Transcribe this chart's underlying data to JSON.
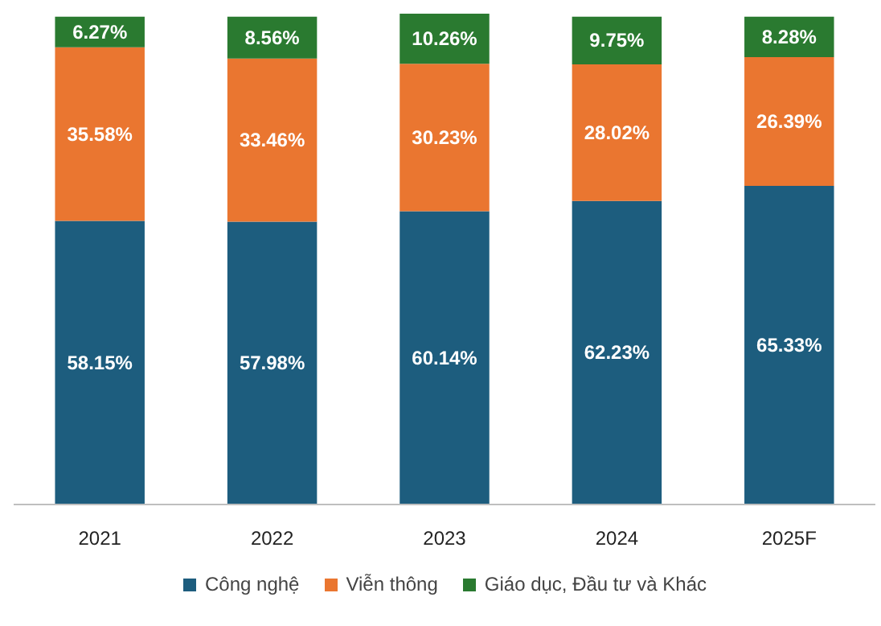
{
  "chart_data": {
    "type": "bar",
    "stacked": true,
    "categories": [
      "2021",
      "2022",
      "2023",
      "2024",
      "2025F"
    ],
    "series": [
      {
        "name": "Công nghệ",
        "color": "#1d5d7e",
        "values": [
          58.15,
          57.98,
          60.14,
          62.23,
          65.33
        ],
        "value_labels": [
          "58.15%",
          "57.98%",
          "60.14%",
          "62.23%",
          "65.33%"
        ]
      },
      {
        "name": "Viễn thông",
        "color": "#ea7630",
        "values": [
          35.58,
          33.46,
          30.23,
          28.02,
          26.39
        ],
        "value_labels": [
          "35.58%",
          "33.46%",
          "30.23%",
          "28.02%",
          "26.39%"
        ]
      },
      {
        "name": "Giáo dục, Đầu tư và Khác",
        "color": "#2a7a30",
        "values": [
          6.27,
          8.56,
          10.26,
          9.75,
          8.28
        ],
        "value_labels": [
          "6.27%",
          "8.56%",
          "10.26%",
          "9.75%",
          "8.28%"
        ]
      }
    ],
    "legend": "bottom"
  }
}
